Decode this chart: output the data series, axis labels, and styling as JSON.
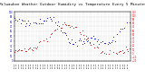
{
  "title": "Milwaukee Weather Outdoor Humidity vs Temperature Every 5 Minutes",
  "title_fontsize": 3.0,
  "background_color": "#ffffff",
  "grid_color": "#aaaaaa",
  "blue_color": "#0000dd",
  "red_color": "#dd0000",
  "ylim_left": [
    0,
    100
  ],
  "ylim_right": [
    -20,
    110
  ],
  "xlim": [
    0,
    288
  ],
  "figsize": [
    1.6,
    0.87
  ],
  "dpi": 100,
  "marker_size": 0.4
}
